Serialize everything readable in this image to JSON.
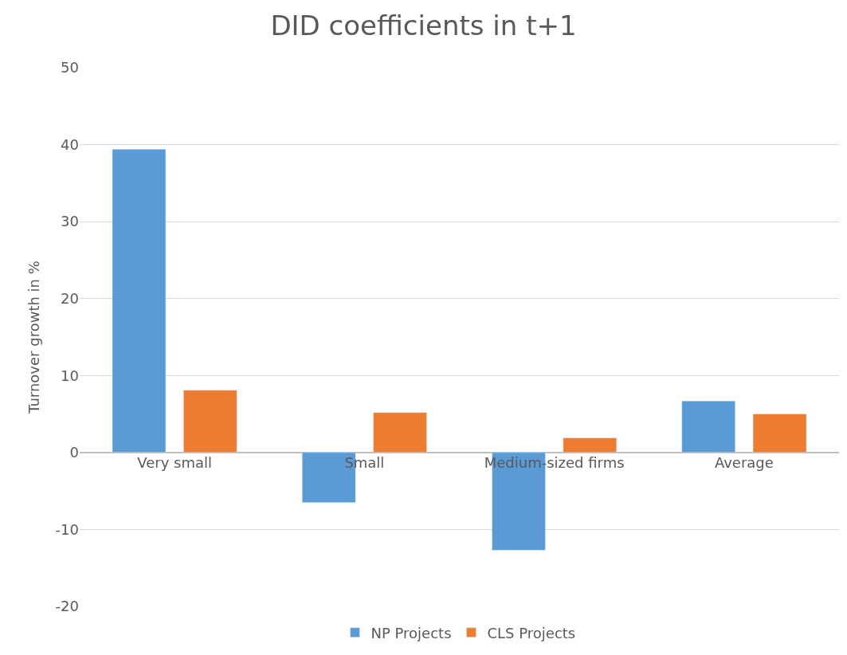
{
  "chart_data": {
    "type": "bar",
    "title": "DID coefficients in t+1",
    "ylabel": "Turnover growth in %",
    "categories": [
      "Very small",
      "Small",
      "Medium-sized firms",
      "Average"
    ],
    "series": [
      {
        "name": "NP Projects",
        "color": "#5b9bd5",
        "values": [
          39.4,
          -6.5,
          -12.7,
          6.7
        ]
      },
      {
        "name": "CLS Projects",
        "color": "#ed7d31",
        "values": [
          8.1,
          5.2,
          1.9,
          5.0
        ]
      }
    ],
    "ylim": [
      -20,
      50
    ],
    "yticks": [
      -20,
      -10,
      0,
      10,
      20,
      30,
      40,
      50
    ],
    "grid": "y",
    "legend": "bottom"
  }
}
